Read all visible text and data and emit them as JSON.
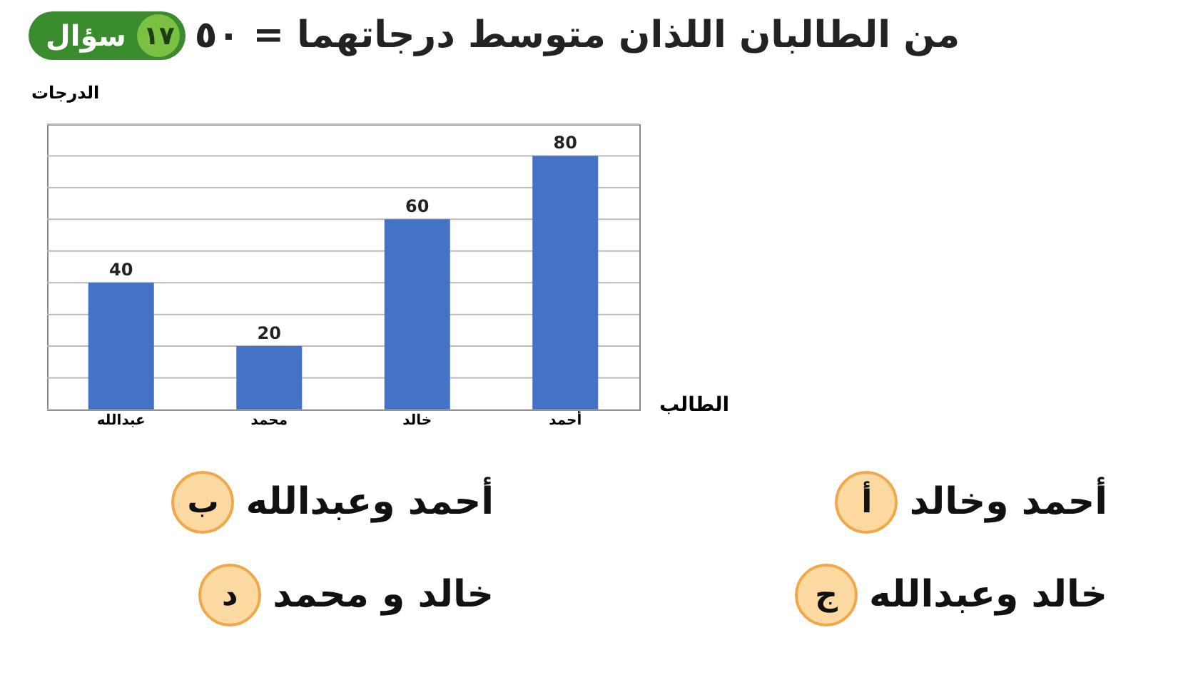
{
  "chart_data": {
    "type": "bar",
    "title": "من الطالبان اللذان متوسط درجاتهما = ٥٠",
    "xlabel": "الطالب",
    "ylabel": "الدرجات",
    "categories": [
      "عبدالله",
      "محمد",
      "خالد",
      "أحمد"
    ],
    "values": [
      40,
      20,
      60,
      80
    ],
    "color": "#4472c4",
    "ylim": [
      0,
      90
    ],
    "yticks": [
      {
        "value": 0,
        "label": null
      },
      {
        "value": 10,
        "label": null
      },
      {
        "value": 20,
        "label": null
      },
      {
        "value": 30,
        "label": null
      },
      {
        "value": 40,
        "label": null
      },
      {
        "value": 50,
        "label": null
      },
      {
        "value": 60,
        "label": null
      },
      {
        "value": 70,
        "label": null
      },
      {
        "value": 80,
        "label": null
      },
      {
        "value": 90,
        "label": null
      }
    ],
    "grid": "y",
    "tick_labels": "x",
    "data_labels": true,
    "annotations": [
      "سؤال",
      "١٧",
      "أ",
      "أحمد وخالد",
      "ب",
      "أحمد وعبدالله",
      "ج",
      "خالد وعبدالله",
      "د",
      "خالد و محمد"
    ]
  }
}
